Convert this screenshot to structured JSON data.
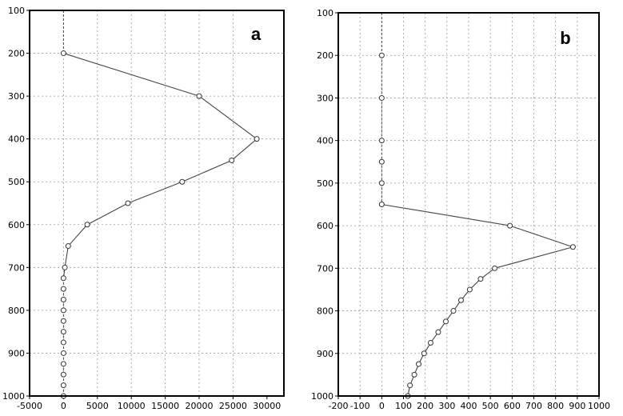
{
  "chart_data": [
    {
      "type": "line",
      "panel_label": "a",
      "orientation": "vertical-profile",
      "y_inverted": true,
      "grid": true,
      "xlim": [
        -5000,
        32500
      ],
      "ylim": [
        1000,
        100
      ],
      "xticks": [
        -5000,
        0,
        5000,
        10000,
        15000,
        20000,
        25000,
        30000
      ],
      "xtick_labels": [
        "-5000",
        "0",
        "5000",
        "10000",
        "15000",
        "20000",
        "25000",
        "30000"
      ],
      "yticks": [
        100,
        200,
        300,
        400,
        500,
        600,
        700,
        800,
        900,
        1000
      ],
      "ytick_labels": [
        "100",
        "200",
        "300",
        "400",
        "500",
        "600",
        "700",
        "800",
        "900",
        "1000"
      ],
      "series": [
        {
          "x": [
            0,
            0,
            20000,
            28500,
            24800,
            17500,
            9500,
            3500,
            700,
            200,
            0,
            0,
            0,
            0,
            0,
            0,
            0,
            0,
            0,
            0,
            0,
            0
          ],
          "y": [
            100,
            200,
            300,
            400,
            450,
            500,
            550,
            600,
            650,
            700,
            725,
            750,
            775,
            800,
            825,
            850,
            875,
            900,
            925,
            950,
            975,
            1000
          ]
        }
      ]
    },
    {
      "type": "line",
      "panel_label": "b",
      "orientation": "vertical-profile",
      "y_inverted": true,
      "grid": true,
      "xlim": [
        -200,
        1000
      ],
      "ylim": [
        1000,
        100
      ],
      "xticks": [
        -200,
        -100,
        0,
        100,
        200,
        300,
        400,
        500,
        600,
        700,
        800,
        900,
        1000
      ],
      "xtick_labels": [
        "-200",
        "-100",
        "0",
        "100",
        "200",
        "300",
        "400",
        "500",
        "600",
        "700",
        "800",
        "900",
        "1000"
      ],
      "yticks": [
        100,
        200,
        300,
        400,
        500,
        600,
        700,
        800,
        900,
        1000
      ],
      "ytick_labels": [
        "100",
        "200",
        "300",
        "400",
        "500",
        "600",
        "700",
        "800",
        "900",
        "1000"
      ],
      "series": [
        {
          "x": [
            0,
            0,
            0,
            0,
            0,
            0,
            0,
            590,
            880,
            520,
            455,
            405,
            365,
            330,
            295,
            260,
            225,
            195,
            170,
            150,
            130,
            120
          ],
          "y": [
            100,
            200,
            300,
            400,
            450,
            500,
            550,
            600,
            650,
            700,
            725,
            750,
            775,
            800,
            825,
            850,
            875,
            900,
            925,
            950,
            975,
            1000
          ]
        }
      ]
    }
  ]
}
